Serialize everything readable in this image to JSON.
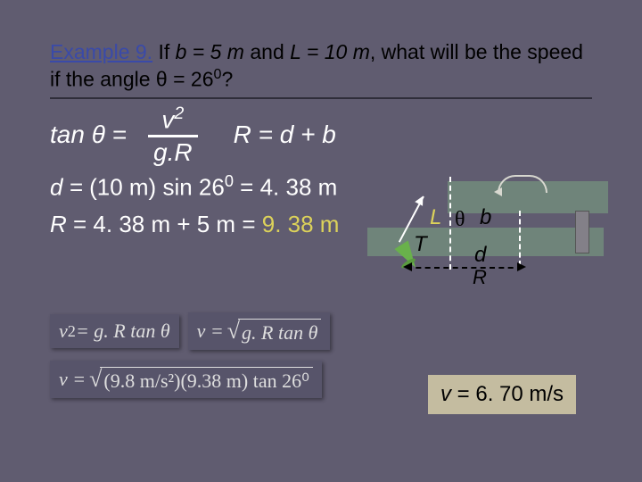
{
  "problem": {
    "link": "Example 9.",
    "text_before": " If ",
    "b_eq": "b = 5 m",
    "and": " and ",
    "L_eq": "L = 10 m",
    "after": ", what will be the speed if the angle ",
    "theta_eq": "θ = 26",
    "exp0": "0",
    "qmark": "?"
  },
  "row1": {
    "lhs": "tan θ  =",
    "num": "v",
    "num_exp": "2",
    "den": "g.R",
    "rhs": "R = d + b"
  },
  "calc_d": {
    "lhs": "d =",
    "mid": " (10 m) sin 26",
    "exp": "0",
    "eq": " = 4. 38 m"
  },
  "calc_R": {
    "lhs": "R",
    "mid": " = 4. 38 m + 5 m = ",
    "res": "9. 38 m"
  },
  "diagram": {
    "L": "L",
    "theta": "θ",
    "b": "b",
    "T": "T",
    "d": "d",
    "R": "R"
  },
  "eq1a": {
    "lhs": "v",
    "exp": "2",
    "rhs": " = g. R tan θ"
  },
  "eq1b": {
    "lhs": "v = ",
    "rad": "g. R tan θ"
  },
  "eq2": {
    "lhs": "v = ",
    "rad": "(9.8 m/s²)(9.38 m) tan 26⁰"
  },
  "answer": {
    "v": "v",
    "rest": " = 6. 70 m/s"
  },
  "colors": {
    "bg": "#605c70",
    "yellow": "#dcd25a",
    "overlay": "#6f847a",
    "answer_bg": "#c4bca0"
  }
}
